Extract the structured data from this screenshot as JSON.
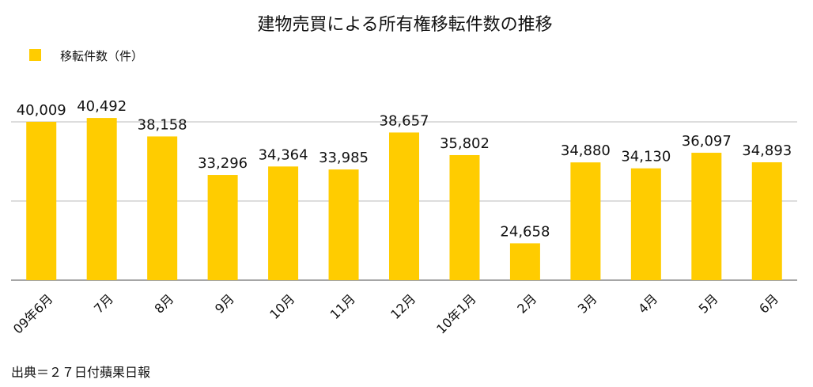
{
  "chart_data": {
    "type": "bar",
    "title": "建物売買による所有権移転件数の推移",
    "legend": {
      "position": "top-left",
      "entries": [
        "移転件数（件）"
      ]
    },
    "series": [
      {
        "name": "移転件数（件）",
        "color": "#FFCC00",
        "values": [
          40009,
          40492,
          38158,
          33296,
          34364,
          33985,
          38657,
          35802,
          24658,
          34880,
          34130,
          36097,
          34893
        ]
      }
    ],
    "categories": [
      "09年6月",
      "7月",
      "8月",
      "9月",
      "10月",
      "11月",
      "12月",
      "10年1月",
      "2月",
      "3月",
      "4月",
      "5月",
      "6月"
    ],
    "value_labels": [
      "40,009",
      "40,492",
      "38,158",
      "33,296",
      "34,364",
      "33,985",
      "38,657",
      "35,802",
      "24,658",
      "34,880",
      "34,130",
      "36,097",
      "34,893"
    ],
    "ylim": [
      20000,
      40000
    ],
    "yticks_shown": false,
    "grid": true,
    "xlabel": "",
    "ylabel": ""
  },
  "source": "出典＝２７日付蘋果日報",
  "colors": {
    "bar": "#FFCC00",
    "grid": "#bbbbbb",
    "axis": "#888888",
    "text": "#111111"
  }
}
